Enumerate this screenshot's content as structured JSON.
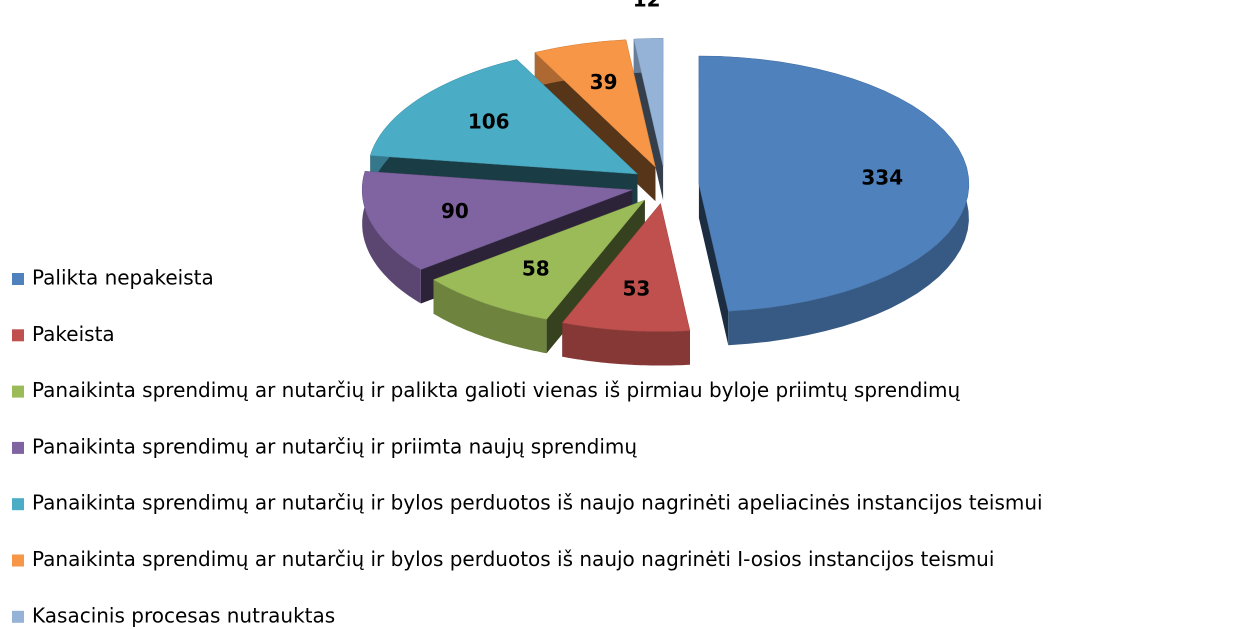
{
  "chart_data": {
    "type": "pie",
    "categories": [
      "Palikta nepakeista",
      "Pakeista",
      "Panaikinta sprendimų ar nutarčių ir palikta galioti vienas iš pirmiau byloje priimtų sprendimų",
      "Panaikinta sprendimų ar nutarčių ir priimta naujų sprendimų",
      "Panaikinta sprendimų ar nutarčių ir bylos perduotos iš naujo nagrinėti apeliacinės instancijos teismui",
      "Panaikinta sprendimų ar nutarčių ir bylos perduotos iš naujo nagrinėti I-osios instancijos teismui",
      "Kasacinis procesas nutrauktas"
    ],
    "values": [
      334,
      53,
      58,
      90,
      106,
      39,
      12
    ],
    "colors": [
      "#4f81bd",
      "#c0504d",
      "#9bbb59",
      "#8064a2",
      "#4bacc6",
      "#f79646",
      "#95b3d7"
    ],
    "legend": "left"
  }
}
